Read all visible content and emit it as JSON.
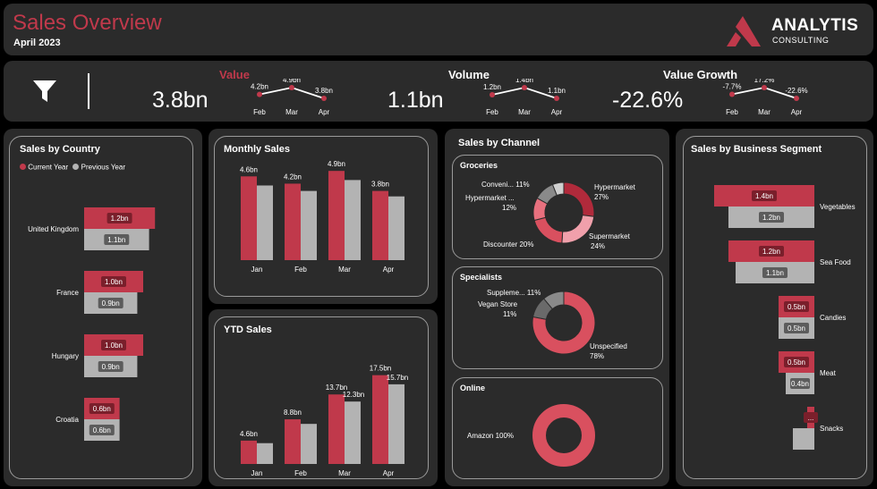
{
  "header": {
    "title": "Sales Overview",
    "subtitle": "April 2023",
    "logo_main": "ANALYTIS",
    "logo_sub": "CONSULTING"
  },
  "colors": {
    "current": "#c0394b",
    "previous": "#b3b3b3",
    "panel": "#2b2b2b",
    "accent": "#c0394b"
  },
  "kpis": {
    "filter_icon": "filter-icon",
    "value": {
      "label": "Value",
      "amount": "3.8bn",
      "points": [
        {
          "m": "Feb",
          "v": "4.2bn",
          "n": 4.2
        },
        {
          "m": "Mar",
          "v": "4.9bn",
          "n": 4.9
        },
        {
          "m": "Apr",
          "v": "3.8bn",
          "n": 3.8
        }
      ]
    },
    "volume": {
      "label": "Volume",
      "amount": "1.1bn",
      "points": [
        {
          "m": "Feb",
          "v": "1.2bn",
          "n": 1.2
        },
        {
          "m": "Mar",
          "v": "1.4bn",
          "n": 1.4
        },
        {
          "m": "Apr",
          "v": "1.1bn",
          "n": 1.1
        }
      ]
    },
    "growth": {
      "label": "Value Growth",
      "amount": "-22.6%",
      "points": [
        {
          "m": "Feb",
          "v": "-7.7%",
          "n": -7.7
        },
        {
          "m": "Mar",
          "v": "17.2%",
          "n": 17.2
        },
        {
          "m": "Apr",
          "v": "-22.6%",
          "n": -22.6
        }
      ]
    }
  },
  "country": {
    "title": "Sales by Country",
    "legend": [
      "Current Year",
      "Previous Year"
    ],
    "rows": [
      {
        "name": "United Kingdom",
        "cur": "1.2bn",
        "prev": "1.1bn"
      },
      {
        "name": "France",
        "cur": "1.0bn",
        "prev": "0.9bn"
      },
      {
        "name": "Hungary",
        "cur": "1.0bn",
        "prev": "0.9bn"
      },
      {
        "name": "Croatia",
        "cur": "0.6bn",
        "prev": "0.6bn"
      }
    ]
  },
  "monthly": {
    "title": "Monthly Sales",
    "months": [
      "Jan",
      "Feb",
      "Mar",
      "Apr"
    ],
    "labels": [
      "4.6bn",
      "4.2bn",
      "4.9bn",
      "3.8bn"
    ]
  },
  "ytd": {
    "title": "YTD Sales",
    "months": [
      "Jan",
      "Feb",
      "Mar",
      "Apr"
    ],
    "cur_labels": [
      "4.6bn",
      "8.8bn",
      "13.7bn",
      "17.5bn"
    ],
    "prev_labels": [
      "",
      "",
      "12.3bn",
      "15.7bn"
    ]
  },
  "channel": {
    "title": "Sales by Channel",
    "groceries": {
      "title": "Groceries",
      "labels": {
        "conv": "Conveni... 11%",
        "hyp1": "Hypermarket ...",
        "hyp1b": "12%",
        "hyp2": "Hypermarket",
        "hyp2b": "27%",
        "disc": "Discounter 20%",
        "sup": "Supermarket",
        "supb": "24%"
      }
    },
    "specialists": {
      "title": "Specialists",
      "labels": {
        "supp": "Suppleme... 11%",
        "vegan": "Vegan Store",
        "veganb": "11%",
        "uns": "Unspecified",
        "unsb": "78%"
      }
    },
    "online": {
      "title": "Online",
      "label": "Amazon 100%"
    }
  },
  "segment": {
    "title": "Sales by Business Segment",
    "rows": [
      {
        "name": "Vegetables",
        "cur": "1.4bn",
        "prev": "1.2bn"
      },
      {
        "name": "Sea Food",
        "cur": "1.2bn",
        "prev": "1.1bn"
      },
      {
        "name": "Candies",
        "cur": "0.5bn",
        "prev": "0.5bn"
      },
      {
        "name": "Meat",
        "cur": "0.5bn",
        "prev": "0.4bn"
      },
      {
        "name": "Snacks",
        "cur": "...",
        "prev": ""
      }
    ]
  },
  "chart_data": [
    {
      "type": "bar",
      "title": "Sales by Country",
      "categories": [
        "United Kingdom",
        "France",
        "Hungary",
        "Croatia"
      ],
      "series": [
        {
          "name": "Current Year",
          "values": [
            1.2,
            1.0,
            1.0,
            0.6
          ]
        },
        {
          "name": "Previous Year",
          "values": [
            1.1,
            0.9,
            0.9,
            0.6
          ]
        }
      ]
    },
    {
      "type": "bar",
      "title": "Monthly Sales",
      "categories": [
        "Jan",
        "Feb",
        "Mar",
        "Apr"
      ],
      "series": [
        {
          "name": "Current Year",
          "values": [
            4.6,
            4.2,
            4.9,
            3.8
          ]
        },
        {
          "name": "Previous Year",
          "values": [
            4.1,
            3.8,
            4.4,
            3.5
          ]
        }
      ]
    },
    {
      "type": "bar",
      "title": "YTD Sales",
      "categories": [
        "Jan",
        "Feb",
        "Mar",
        "Apr"
      ],
      "series": [
        {
          "name": "Current Year",
          "values": [
            4.6,
            8.8,
            13.7,
            17.5
          ]
        },
        {
          "name": "Previous Year",
          "values": [
            4.1,
            7.9,
            12.3,
            15.7
          ]
        }
      ]
    },
    {
      "type": "pie",
      "title": "Groceries",
      "categories": [
        "Hypermarket",
        "Supermarket",
        "Discounter",
        "Hypermarket ...",
        "Conveni...",
        "Other"
      ],
      "values": [
        27,
        24,
        20,
        12,
        11,
        6
      ]
    },
    {
      "type": "pie",
      "title": "Specialists",
      "categories": [
        "Unspecified",
        "Vegan Store",
        "Suppleme..."
      ],
      "values": [
        78,
        11,
        11
      ]
    },
    {
      "type": "pie",
      "title": "Online",
      "categories": [
        "Amazon"
      ],
      "values": [
        100
      ]
    },
    {
      "type": "bar",
      "title": "Sales by Business Segment",
      "categories": [
        "Vegetables",
        "Sea Food",
        "Candies",
        "Meat",
        "Snacks"
      ],
      "series": [
        {
          "name": "Current Year",
          "values": [
            1.4,
            1.2,
            0.5,
            0.5,
            0.1
          ]
        },
        {
          "name": "Previous Year",
          "values": [
            1.2,
            1.1,
            0.5,
            0.4,
            0.3
          ]
        }
      ]
    }
  ]
}
